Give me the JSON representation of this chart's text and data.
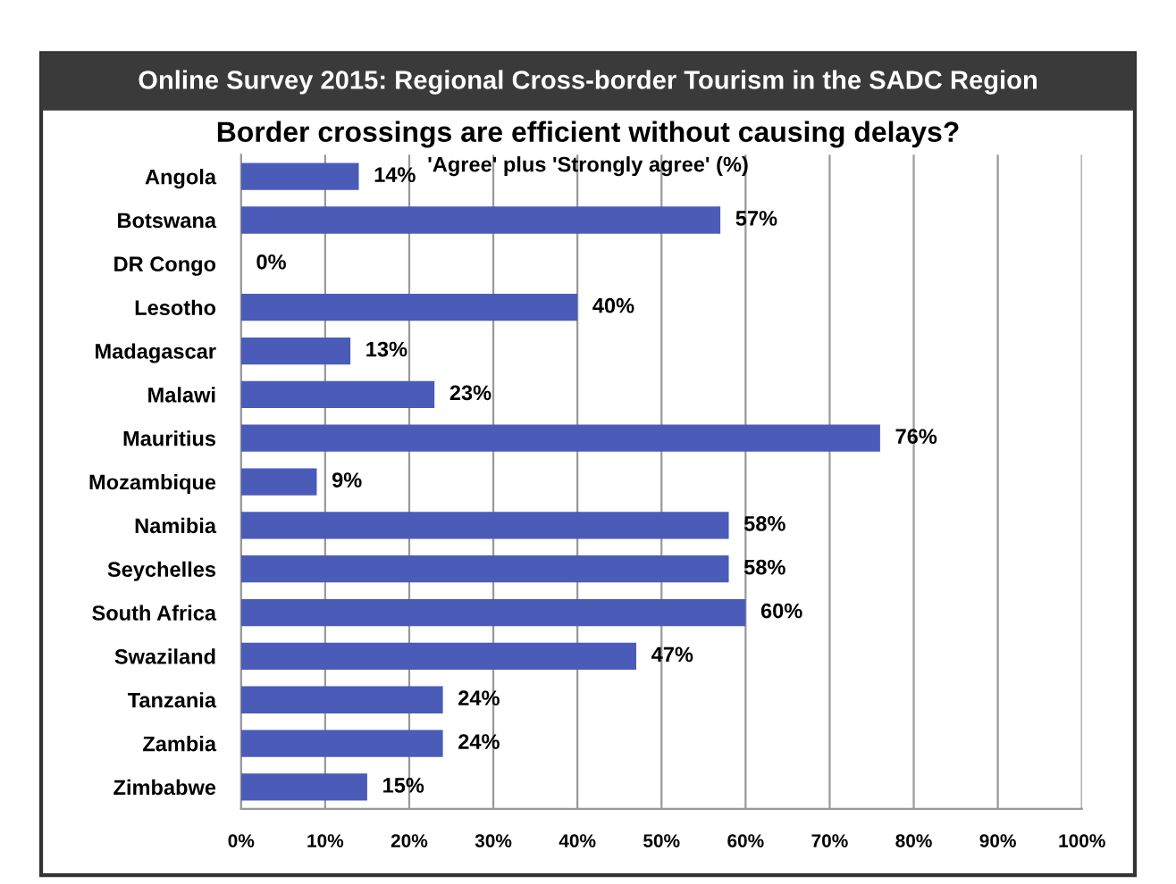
{
  "chart_data": {
    "type": "bar",
    "orientation": "horizontal",
    "title": "Online Survey 2015: Regional Cross-border Tourism in the SADC Region",
    "subtitle": "Border crossings are efficient without causing delays?",
    "xlabel": "'Agree' plus 'Strongly agree' (%)",
    "categories": [
      "Angola",
      "Botswana",
      "DR Congo",
      "Lesotho",
      "Madagascar",
      "Malawi",
      "Mauritius",
      "Mozambique",
      "Namibia",
      "Seychelles",
      "South Africa",
      "Swaziland",
      "Tanzania",
      "Zambia",
      "Zimbabwe"
    ],
    "values": [
      14,
      57,
      0,
      40,
      13,
      23,
      76,
      9,
      58,
      58,
      60,
      47,
      24,
      24,
      15
    ],
    "value_labels": [
      "14%",
      "57%",
      "0%",
      "40%",
      "13%",
      "23%",
      "76%",
      "9%",
      "58%",
      "58%",
      "60%",
      "47%",
      "24%",
      "24%",
      "15%"
    ],
    "color": "#4a5bb8",
    "xlim": [
      0,
      100
    ],
    "xticks": [
      {
        "value": 0,
        "label": "0%"
      },
      {
        "value": 10,
        "label": "10%"
      },
      {
        "value": 20,
        "label": "20%"
      },
      {
        "value": 30,
        "label": "30%"
      },
      {
        "value": 40,
        "label": "40%"
      },
      {
        "value": 50,
        "label": "50%"
      },
      {
        "value": 60,
        "label": "60%"
      },
      {
        "value": 70,
        "label": "70%"
      },
      {
        "value": 80,
        "label": "80%"
      },
      {
        "value": 90,
        "label": "90%"
      },
      {
        "value": 100,
        "label": "100%"
      }
    ],
    "grid": "x",
    "legend": false
  }
}
